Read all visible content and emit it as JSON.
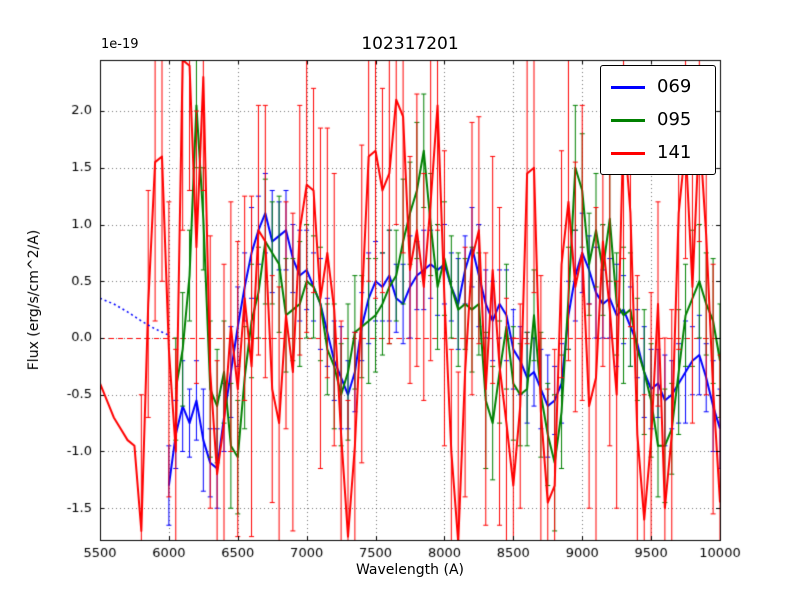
{
  "chart_data": {
    "type": "line",
    "title": "102317201",
    "xlabel": "Wavelength (A)",
    "ylabel": "Flux (erg/s/cm^2/A)",
    "offset_label": "1e-19",
    "xlim": [
      5500,
      10000
    ],
    "ylim": [
      -1.78,
      2.45
    ],
    "xticks": [
      5500,
      6000,
      6500,
      7000,
      7500,
      8000,
      8500,
      9000,
      9500,
      10000
    ],
    "xtick_labels": [
      "5500",
      "6000",
      "6500",
      "7000",
      "7500",
      "8000",
      "8500",
      "9000",
      "9500",
      "10000"
    ],
    "yticks": [
      -1.5,
      -1.0,
      -0.5,
      0.0,
      0.5,
      1.0,
      1.5,
      2.0
    ],
    "ytick_labels": [
      "-1.5",
      "-1.0",
      "-0.5",
      "0.0",
      "0.5",
      "1.0",
      "1.5",
      "2.0"
    ],
    "grid": true,
    "grid_style": "dotted",
    "legend_position": "upper right",
    "zero_line": {
      "y": 0,
      "color": "#ff0000",
      "style": "dashed"
    },
    "series": [
      {
        "name": "069",
        "color": "#0000ff",
        "x_start": 6000,
        "x_step": 50,
        "y": [
          -1.3,
          -0.85,
          -0.6,
          -0.75,
          -0.55,
          -0.9,
          -1.1,
          -1.15,
          -0.7,
          -0.3,
          0.1,
          0.45,
          0.75,
          0.95,
          1.1,
          0.85,
          0.9,
          0.95,
          0.7,
          0.55,
          0.6,
          0.45,
          0.3,
          0.05,
          -0.2,
          -0.35,
          -0.5,
          -0.3,
          0.1,
          0.35,
          0.5,
          0.45,
          0.55,
          0.35,
          0.3,
          0.45,
          0.55,
          0.6,
          0.65,
          0.6,
          0.65,
          0.45,
          0.3,
          0.6,
          0.8,
          0.55,
          0.3,
          0.15,
          0.3,
          0.2,
          -0.1,
          -0.2,
          -0.35,
          -0.3,
          -0.45,
          -0.6,
          -0.55,
          -0.4,
          0.2,
          0.55,
          0.75,
          0.6,
          0.4,
          0.3,
          0.35,
          0.2,
          0.25,
          0.1,
          -0.05,
          -0.3,
          -0.45,
          -0.4,
          -0.55,
          -0.5,
          -0.4,
          -0.3,
          -0.2,
          -0.15,
          -0.35,
          -0.6,
          -0.8
        ],
        "err": [
          0.35,
          0.3,
          0.4,
          0.3,
          0.35,
          0.45,
          0.3,
          0.35,
          0.3,
          0.4,
          0.35,
          0.3,
          0.4,
          0.3,
          0.35,
          0.45,
          0.3,
          0.35,
          0.3,
          0.4,
          0.35,
          0.3,
          0.4,
          0.3,
          0.35,
          0.45,
          0.3,
          0.35,
          0.3,
          0.4,
          0.35,
          0.3,
          0.4,
          0.3,
          0.35,
          0.45,
          0.3,
          0.35,
          0.3,
          0.4,
          0.35,
          0.3,
          0.4,
          0.3,
          0.35,
          0.45,
          0.3,
          0.35,
          0.3,
          0.4,
          0.35,
          0.3,
          0.4,
          0.3,
          0.35,
          0.45,
          0.3,
          0.35,
          0.3,
          0.4,
          0.35,
          0.3,
          0.4,
          0.3,
          0.35,
          0.45,
          0.3,
          0.35,
          0.3,
          0.4,
          0.35,
          0.3,
          0.4,
          0.3,
          0.35,
          0.45,
          0.3,
          0.35,
          0.3,
          0.4,
          0.35
        ]
      },
      {
        "name": "095",
        "color": "#008000",
        "x_start": 6050,
        "x_step": 50,
        "y": [
          -0.45,
          -0.1,
          0.55,
          2.05,
          1.05,
          -0.45,
          -0.6,
          -0.3,
          -0.95,
          -1.05,
          -0.35,
          0.15,
          0.4,
          0.85,
          0.75,
          0.65,
          0.2,
          0.25,
          0.3,
          0.5,
          0.45,
          0.3,
          -0.1,
          -0.25,
          -0.5,
          -0.3,
          0.05,
          0.1,
          0.15,
          0.2,
          0.3,
          0.45,
          0.55,
          0.85,
          1.1,
          1.3,
          1.65,
          1.0,
          0.45,
          0.7,
          0.45,
          0.25,
          0.3,
          0.25,
          0.3,
          -0.55,
          -0.75,
          -0.3,
          0.1,
          -0.4,
          -0.5,
          -0.45,
          0.2,
          -0.5,
          -0.85,
          -1.1,
          -0.65,
          0.35,
          1.5,
          1.3,
          0.65,
          0.95,
          0.6,
          1.05,
          0.3,
          0.2,
          0.25,
          -0.1,
          -0.3,
          -0.55,
          -0.95,
          -0.95,
          -0.8,
          -0.3,
          0.2,
          0.35,
          0.5,
          0.3,
          0.15,
          -0.2
        ],
        "err": [
          0.45,
          0.5,
          0.4,
          0.55,
          0.45,
          0.6,
          0.5,
          0.45,
          0.55,
          0.5,
          0.45,
          0.5,
          0.4,
          0.55,
          0.45,
          0.6,
          0.5,
          0.45,
          0.55,
          0.5,
          0.45,
          0.5,
          0.4,
          0.55,
          0.45,
          0.6,
          0.5,
          0.45,
          0.55,
          0.5,
          0.45,
          0.5,
          0.4,
          0.55,
          0.45,
          0.6,
          0.5,
          0.45,
          0.55,
          0.5,
          0.45,
          0.5,
          0.4,
          0.55,
          0.45,
          0.6,
          0.5,
          0.45,
          0.55,
          0.5,
          0.45,
          0.5,
          0.4,
          0.55,
          0.45,
          0.6,
          0.5,
          0.45,
          0.55,
          0.5,
          0.45,
          0.5,
          0.4,
          0.55,
          0.45,
          0.6,
          0.5,
          0.45,
          0.55,
          0.5,
          0.45,
          0.5,
          0.4,
          0.55,
          0.45,
          0.6,
          0.5,
          0.45,
          0.55,
          0.5
        ]
      },
      {
        "name": "141",
        "color": "#ff0000",
        "x_start": 5500,
        "x_step": 50,
        "y": [
          -0.4,
          -0.55,
          -0.7,
          -0.8,
          -0.9,
          -0.95,
          -1.7,
          0.3,
          1.55,
          1.6,
          -0.1,
          -1.0,
          2.45,
          2.4,
          0.8,
          2.3,
          -0.3,
          -1.2,
          -0.75,
          0.1,
          -0.45,
          0.35,
          -0.25,
          0.95,
          0.85,
          -0.45,
          -0.75,
          0.2,
          -0.3,
          0.95,
          1.35,
          1.3,
          0.35,
          0.75,
          0.25,
          -0.85,
          -1.75,
          -0.95,
          0.3,
          1.6,
          1.65,
          1.3,
          1.45,
          2.1,
          1.95,
          0.6,
          0.95,
          0.45,
          1.2,
          2.05,
          0.35,
          -1.0,
          -1.8,
          -0.3,
          0.7,
          0.95,
          -0.45,
          0.6,
          -0.25,
          -0.75,
          -1.3,
          -0.6,
          1.45,
          1.5,
          -0.65,
          -1.45,
          -1.3,
          0.65,
          1.2,
          0.45,
          0.75,
          -0.6,
          -0.35,
          0.85,
          0.25,
          -0.5,
          1.9,
          1.1,
          -0.85,
          -1.6,
          -0.9,
          0.3,
          -1.5,
          -0.85,
          1.1,
          1.7,
          0.45,
          1.85,
          0.9,
          -0.45,
          -1.45
        ],
        "err": [
          0,
          0,
          0,
          0,
          0,
          0,
          1.2,
          1.0,
          1.4,
          1.1,
          1.3,
          0.9,
          1.5,
          1.1,
          1.2,
          1.0,
          1.2,
          1.0,
          1.4,
          1.1,
          1.3,
          0.9,
          1.5,
          1.1,
          1.2,
          1.0,
          1.2,
          1.0,
          1.4,
          1.1,
          1.3,
          0.9,
          1.5,
          1.1,
          1.2,
          1.0,
          1.2,
          1.0,
          1.4,
          1.1,
          1.3,
          0.9,
          1.5,
          1.1,
          1.2,
          1.0,
          1.2,
          1.0,
          1.4,
          1.1,
          1.3,
          0.9,
          1.5,
          1.1,
          1.2,
          1.0,
          1.2,
          1.0,
          1.4,
          1.1,
          1.3,
          0.9,
          1.5,
          1.1,
          1.2,
          1.0,
          1.2,
          1.0,
          1.4,
          1.1,
          1.3,
          0.9,
          1.5,
          1.1,
          1.2,
          1.0,
          1.2,
          1.0,
          1.4,
          1.1,
          1.3,
          0.9,
          1.5,
          1.1,
          1.2,
          1.0,
          1.2,
          1.0,
          1.4,
          1.1,
          1.3
        ]
      }
    ],
    "extra_segments": [
      {
        "name": "069-dotted-continuum",
        "color": "#0000ff",
        "style": "dotted",
        "x": [
          5500,
          5600,
          5700,
          5800,
          5900,
          5990
        ],
        "y": [
          0.35,
          0.3,
          0.23,
          0.15,
          0.08,
          0.03
        ]
      }
    ]
  }
}
